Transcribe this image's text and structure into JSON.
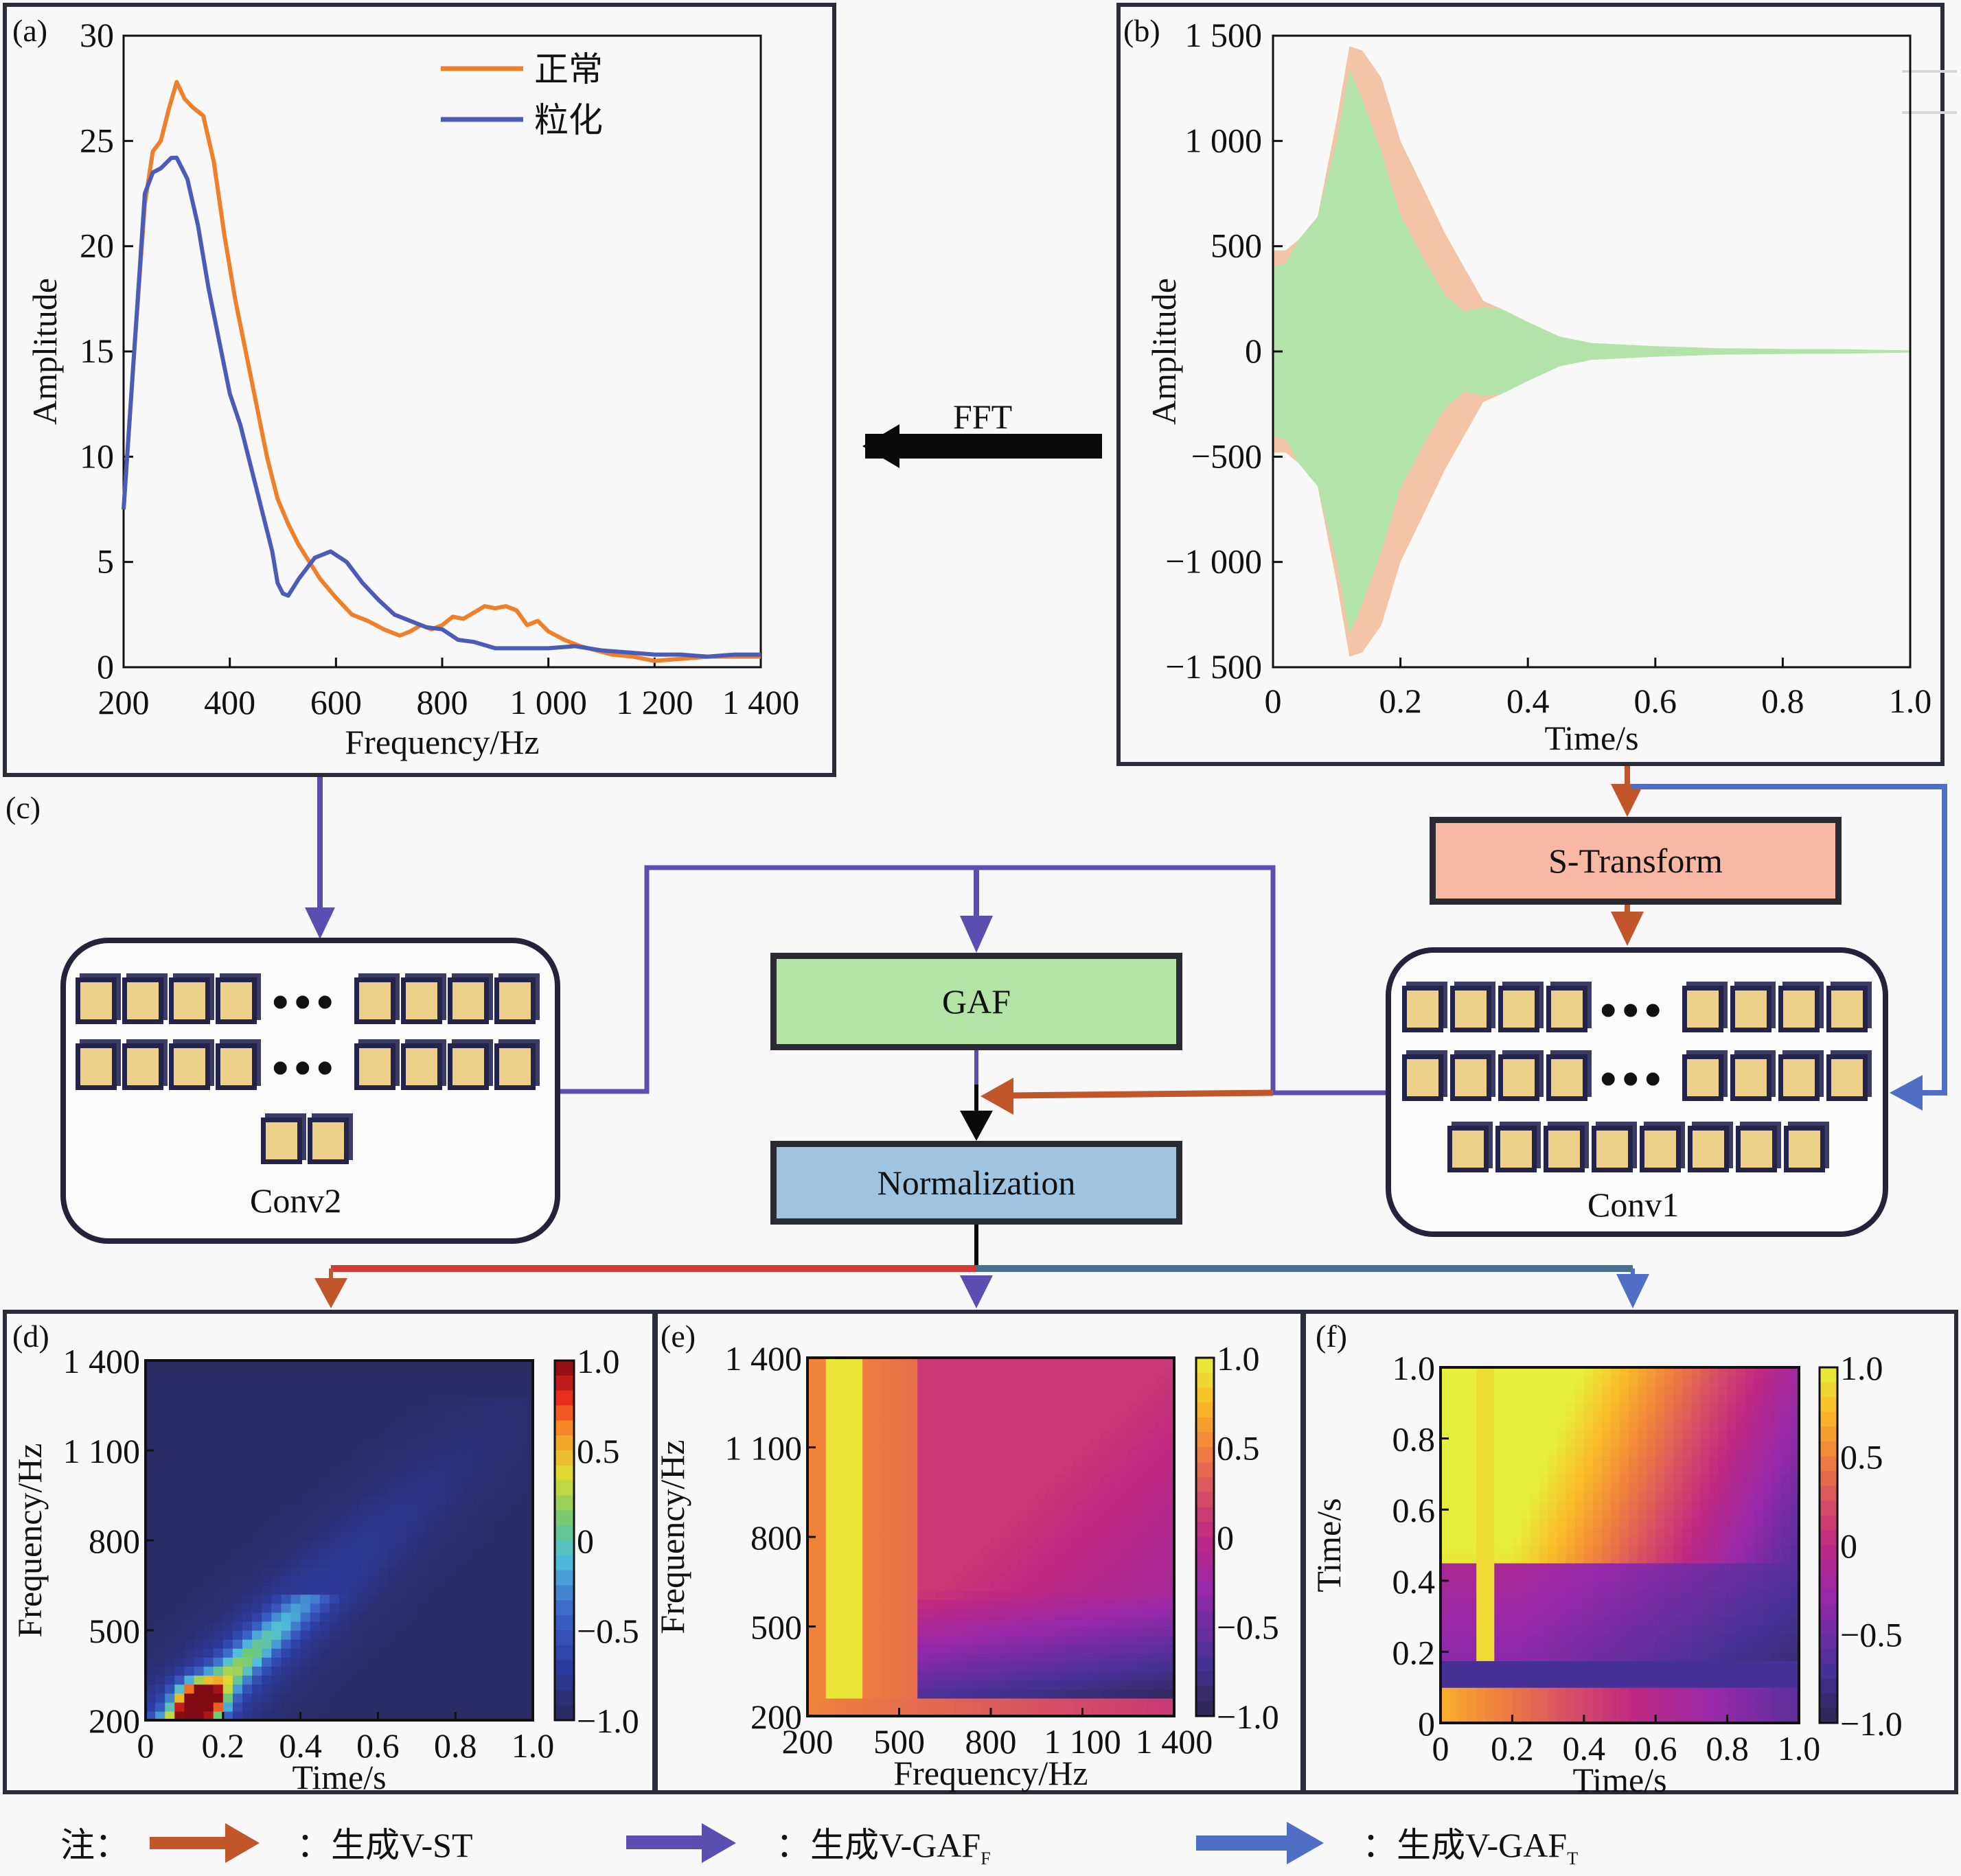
{
  "panels": {
    "a": {
      "label": "(a)"
    },
    "b": {
      "label": "(b)"
    },
    "c": {
      "label": "(c)"
    },
    "d": {
      "label": "(d)"
    },
    "e": {
      "label": "(e)"
    },
    "f": {
      "label": "(f)"
    }
  },
  "flow": {
    "fft_label": "FFT",
    "s_transform_label": "S-Transform",
    "gaf_label": "GAF",
    "normalization_label": "Normalization",
    "conv1_label": "Conv1",
    "conv2_label": "Conv2",
    "colors": {
      "v_st": "#c0562a",
      "v_gaf_f": "#5a4fb0",
      "v_gaf_t": "#4f6fc4",
      "black": "#0a0a0a"
    },
    "box_colors": {
      "s_transform": "#f9b8a3",
      "gaf": "#b4e3a6",
      "normalization": "#a0c4e0"
    }
  },
  "legend": {
    "prefix": "注：",
    "items": [
      {
        "text": "：生成V-ST",
        "sub": "",
        "color": "#c0562a"
      },
      {
        "text": "：生成V-GAF",
        "sub": "F",
        "color": "#5a4fb0"
      },
      {
        "text": "：生成V-GAF",
        "sub": "T",
        "color": "#4f6fc4"
      }
    ]
  },
  "chart_data": [
    {
      "id": "a",
      "type": "line",
      "title": "",
      "xlabel": "Frequency/Hz",
      "ylabel": "Amplitude",
      "xlim": [
        200,
        1400
      ],
      "ylim": [
        0,
        30
      ],
      "xticks": [
        "200",
        "400",
        "600",
        "800",
        "1 000",
        "1 200",
        "1 400"
      ],
      "xtick_values": [
        200,
        400,
        600,
        800,
        1000,
        1200,
        1400
      ],
      "yticks": [
        "0",
        "5",
        "10",
        "15",
        "20",
        "25",
        "30"
      ],
      "ytick_values": [
        0,
        5,
        10,
        15,
        20,
        25,
        30
      ],
      "legend_position": "top-right",
      "series": [
        {
          "name": "正常",
          "color": "#f07f2a",
          "x": [
            200,
            220,
            240,
            255,
            270,
            285,
            300,
            315,
            330,
            350,
            370,
            390,
            410,
            430,
            450,
            470,
            490,
            510,
            530,
            550,
            570,
            600,
            630,
            660,
            690,
            720,
            740,
            760,
            780,
            800,
            820,
            840,
            860,
            880,
            900,
            920,
            940,
            960,
            980,
            1000,
            1030,
            1060,
            1090,
            1120,
            1160,
            1200,
            1250,
            1300,
            1350,
            1400
          ],
          "y": [
            7.5,
            15.0,
            22.0,
            24.5,
            25.0,
            26.5,
            27.8,
            27.0,
            26.6,
            26.2,
            24.0,
            20.5,
            17.5,
            15.0,
            12.5,
            10.0,
            8.0,
            6.8,
            5.8,
            5.0,
            4.2,
            3.3,
            2.5,
            2.2,
            1.8,
            1.5,
            1.7,
            2.0,
            1.8,
            2.0,
            2.4,
            2.3,
            2.6,
            2.9,
            2.8,
            2.9,
            2.7,
            2.0,
            2.2,
            1.7,
            1.3,
            1.0,
            0.8,
            0.6,
            0.5,
            0.3,
            0.4,
            0.5,
            0.5,
            0.5
          ]
        },
        {
          "name": "粒化",
          "color": "#4b5cb8",
          "x": [
            200,
            220,
            240,
            255,
            270,
            290,
            300,
            320,
            340,
            360,
            380,
            400,
            420,
            440,
            460,
            480,
            490,
            500,
            510,
            530,
            560,
            590,
            620,
            650,
            680,
            710,
            740,
            770,
            800,
            830,
            860,
            900,
            950,
            1000,
            1050,
            1100,
            1150,
            1200,
            1250,
            1300,
            1350,
            1400
          ],
          "y": [
            7.5,
            15.0,
            22.5,
            23.5,
            23.7,
            24.2,
            24.2,
            23.2,
            21.0,
            18.0,
            15.5,
            13.0,
            11.5,
            9.5,
            7.5,
            5.5,
            4.0,
            3.5,
            3.4,
            4.2,
            5.2,
            5.5,
            5.0,
            4.0,
            3.2,
            2.5,
            2.2,
            1.9,
            1.8,
            1.3,
            1.2,
            0.9,
            0.9,
            0.9,
            1.0,
            0.8,
            0.7,
            0.6,
            0.6,
            0.5,
            0.6,
            0.6
          ]
        }
      ]
    },
    {
      "id": "b",
      "type": "area",
      "title": "",
      "xlabel": "Time/s",
      "ylabel": "Amplitude",
      "xlim": [
        0,
        1.0
      ],
      "ylim": [
        -1500,
        1500
      ],
      "xticks": [
        "0",
        "0.2",
        "0.4",
        "0.6",
        "0.8",
        "1.0"
      ],
      "xtick_values": [
        0,
        0.2,
        0.4,
        0.6,
        0.8,
        1.0
      ],
      "yticks": [
        "1 500",
        "1 000",
        "500",
        "0",
        "−500",
        "−1 000",
        "−1 500"
      ],
      "ytick_values": [
        1500,
        1000,
        500,
        0,
        -500,
        -1000,
        -1500
      ],
      "legend_position": "top-right",
      "series": [
        {
          "name": "正常",
          "color": "#f3c4a5",
          "t": [
            0,
            0.02,
            0.04,
            0.07,
            0.1,
            0.12,
            0.14,
            0.17,
            0.2,
            0.24,
            0.27,
            0.3,
            0.33,
            0.36,
            0.4,
            0.45,
            0.5,
            0.6,
            0.7,
            0.8,
            0.9,
            1.0
          ],
          "envelope": [
            480,
            480,
            530,
            640,
            1100,
            1450,
            1430,
            1300,
            1000,
            750,
            560,
            400,
            240,
            200,
            140,
            70,
            40,
            25,
            15,
            12,
            10,
            5
          ]
        },
        {
          "name": "粒化",
          "color": "#b2e3a8",
          "t": [
            0,
            0.02,
            0.04,
            0.07,
            0.1,
            0.12,
            0.14,
            0.17,
            0.2,
            0.24,
            0.27,
            0.3,
            0.33,
            0.36,
            0.4,
            0.45,
            0.5,
            0.6,
            0.7,
            0.8,
            0.9,
            1.0
          ],
          "envelope": [
            400,
            420,
            530,
            640,
            1000,
            1340,
            1200,
            950,
            650,
            420,
            270,
            190,
            210,
            200,
            140,
            70,
            40,
            25,
            15,
            12,
            10,
            5
          ]
        }
      ]
    },
    {
      "id": "d",
      "type": "heatmap",
      "colormap": "jet",
      "xlabel": "Time/s",
      "ylabel": "Frequency/Hz",
      "xlim": [
        0,
        1.0
      ],
      "ylim": [
        200,
        1400
      ],
      "xticks": [
        "0",
        "0.2",
        "0.4",
        "0.6",
        "0.8",
        "1.0"
      ],
      "yticks": [
        "200",
        "500",
        "800",
        "1 100",
        "1 400"
      ],
      "colorbar_ticks": [
        "1.0",
        "0.5",
        "0",
        "−0.5",
        "−1.0"
      ],
      "clim": [
        -1.0,
        1.0
      ],
      "peak": {
        "time": 0.14,
        "frequency": 260,
        "value": 1.0
      },
      "ridge": [
        {
          "time": 0.14,
          "frequency": 260
        },
        {
          "time": 0.22,
          "frequency": 380
        },
        {
          "time": 0.3,
          "frequency": 480
        },
        {
          "time": 0.37,
          "frequency": 560
        }
      ]
    },
    {
      "id": "e",
      "type": "heatmap",
      "colormap": "plasma",
      "xlabel": "Frequency/Hz",
      "ylabel": "Frequency/Hz",
      "xlim": [
        200,
        1400
      ],
      "ylim": [
        200,
        1400
      ],
      "xticks": [
        "200",
        "500",
        "800",
        "1 100",
        "1 400"
      ],
      "yticks": [
        "200",
        "500",
        "800",
        "1 100",
        "1 400"
      ],
      "colorbar_ticks": [
        "1.0",
        "0.5",
        "0",
        "−0.5",
        "−1.0"
      ],
      "clim": [
        -1.0,
        1.0
      ]
    },
    {
      "id": "f",
      "type": "heatmap",
      "colormap": "plasma",
      "xlabel": "Time/s",
      "ylabel": "Time/s",
      "xlim": [
        0,
        1.0
      ],
      "ylim": [
        0,
        1.0
      ],
      "xticks": [
        "0",
        "0.2",
        "0.4",
        "0.6",
        "0.8",
        "1.0"
      ],
      "yticks": [
        "0",
        "0.2",
        "0.4",
        "0.6",
        "0.8",
        "1.0"
      ],
      "colorbar_ticks": [
        "1.0",
        "0.5",
        "0",
        "−0.5",
        "−1.0"
      ],
      "clim": [
        -1.0,
        1.0
      ]
    }
  ]
}
